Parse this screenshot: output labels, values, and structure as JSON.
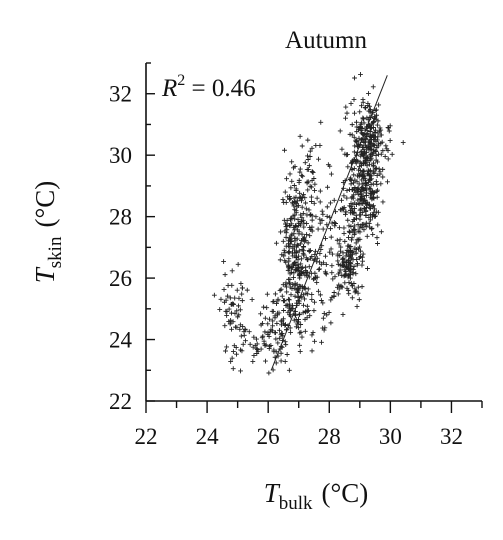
{
  "chart_data": {
    "type": "scatter",
    "title": "Autumn",
    "xlabel": {
      "symbol": "T",
      "subscript": "bulk",
      "unit": "(°C)"
    },
    "ylabel": {
      "symbol": "T",
      "subscript": "skin",
      "unit": "(°C)"
    },
    "xlim": [
      22,
      33
    ],
    "ylim": [
      22,
      33
    ],
    "xticks": [
      "22",
      "24",
      "26",
      "28",
      "30",
      "32"
    ],
    "yticks": [
      "22",
      "24",
      "26",
      "28",
      "30",
      "32"
    ],
    "grid": false,
    "annotation": {
      "symbol": "R",
      "superscript": "2",
      "text": " = 0.46"
    },
    "marker": "plus",
    "marker_color": "#222222",
    "fit_line": {
      "x": [
        26.1,
        29.9
      ],
      "y": [
        23.0,
        32.6
      ]
    },
    "clusters": [
      {
        "cx": 24.9,
        "cy": 24.7,
        "sx": 0.25,
        "sy": 0.8,
        "n": 70
      },
      {
        "cx": 25.7,
        "cy": 23.9,
        "sx": 0.35,
        "sy": 0.35,
        "n": 25
      },
      {
        "cx": 26.3,
        "cy": 24.3,
        "sx": 0.25,
        "sy": 0.6,
        "n": 70
      },
      {
        "cx": 26.9,
        "cy": 26.8,
        "sx": 0.25,
        "sy": 1.3,
        "n": 260
      },
      {
        "cx": 27.4,
        "cy": 28.9,
        "sx": 0.3,
        "sy": 1.1,
        "n": 50
      },
      {
        "cx": 27.3,
        "cy": 25.5,
        "sx": 0.35,
        "sy": 1.0,
        "n": 90
      },
      {
        "cx": 27.9,
        "cy": 27.2,
        "sx": 0.35,
        "sy": 0.9,
        "n": 50
      },
      {
        "cx": 28.6,
        "cy": 26.4,
        "sx": 0.25,
        "sy": 0.5,
        "n": 110
      },
      {
        "cx": 28.8,
        "cy": 28.4,
        "sx": 0.2,
        "sy": 1.4,
        "n": 120
      },
      {
        "cx": 29.2,
        "cy": 29.5,
        "sx": 0.25,
        "sy": 1.1,
        "n": 300
      },
      {
        "cx": 29.4,
        "cy": 31.0,
        "sx": 0.15,
        "sy": 0.5,
        "n": 40
      },
      {
        "cx": 29.6,
        "cy": 30.4,
        "sx": 0.3,
        "sy": 0.5,
        "n": 40
      }
    ]
  }
}
